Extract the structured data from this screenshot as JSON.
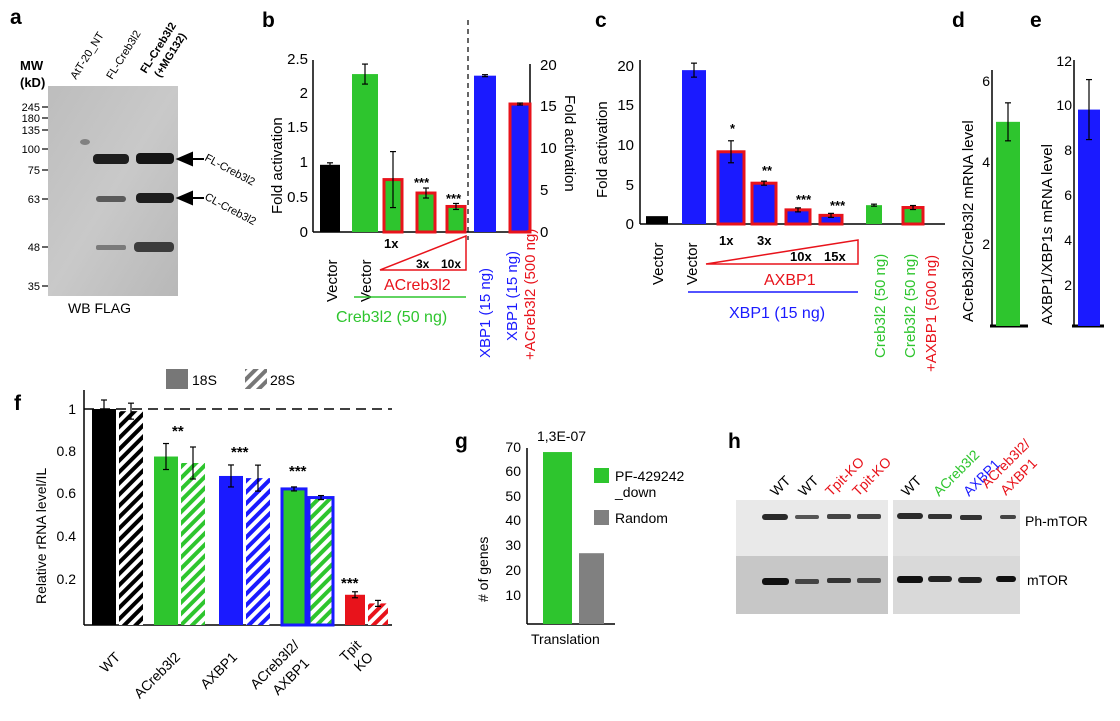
{
  "a": {
    "panel": "a",
    "mw_label": "MW",
    "kd_label": "(kD)",
    "lanes": [
      "AtT-20_NT",
      "FL-Creb3l2"
    ],
    "lane3_line1": "FL-Creb3l2",
    "lane3_line2": "(+MG132)",
    "markers": [
      "245",
      "180",
      "135",
      "100",
      "75",
      "63",
      "48",
      "35"
    ],
    "arrow_labels": [
      "FL-Creb3l2",
      "CL-Creb3l2"
    ],
    "wb_label": "WB FLAG"
  },
  "b": {
    "panel": "b",
    "left_ticks": [
      "0",
      "0.5",
      "1",
      "1.5",
      "2",
      "2.5"
    ],
    "right_ticks": [
      "0",
      "5",
      "10",
      "15",
      "20"
    ],
    "ylabel": "Fold activation",
    "ylabel_right": "Fold activation",
    "x_labels": [
      "Vector",
      "Vector"
    ],
    "doses": [
      "1x",
      "3x",
      "10x"
    ],
    "acreb_label": "ACreb3l2",
    "creb_label": "Creb3l2 (50 ng)",
    "xbp_label": "XBP1 (15 ng)",
    "xbp_label2": "XBP1 (15 ng)",
    "plus_label": "+ACreb3l2 (500 ng)",
    "sig": [
      "***",
      "***"
    ]
  },
  "c": {
    "panel": "c",
    "ticks": [
      "0",
      "5",
      "10",
      "15",
      "20"
    ],
    "ylabel": "Fold activation",
    "x_labels": [
      "Vector",
      "Vector"
    ],
    "doses": [
      "1x",
      "3x",
      "10x",
      "15x"
    ],
    "axbp_label": "AXBP1",
    "xbp_label": "XBP1 (15 ng)",
    "creb_label": "Creb3l2 (50 ng)",
    "creb_label2": "Creb3l2 (50 ng)",
    "plus_label": "+AXBP1 (500 ng)",
    "sig": [
      "*",
      "**",
      "***",
      "***"
    ]
  },
  "d": {
    "panel": "d",
    "ticks": [
      "2",
      "4",
      "6"
    ],
    "ylabel": "ACreb3l2/Creb3l2 mRNA level"
  },
  "e": {
    "panel": "e",
    "ticks": [
      "2",
      "4",
      "6",
      "8",
      "10",
      "12"
    ],
    "ylabel": "AXBP1/XBP1s mRNA level"
  },
  "f": {
    "panel": "f",
    "legend": [
      "18S",
      "28S"
    ],
    "ticks": [
      "0.2",
      "0.4",
      "0.6",
      "0.8",
      "1"
    ],
    "ylabel": "Relative rRNA level/IL",
    "groups": [
      "WT",
      "ACreb3l2",
      "AXBP1"
    ],
    "group4_line1": "ACreb3l2/",
    "group4_line2": "AXBP1",
    "group5_line1": "Tpit",
    "group5_line2": "KO",
    "sig": [
      "**",
      "***",
      "***",
      "***"
    ]
  },
  "g": {
    "panel": "g",
    "ticks": [
      "10",
      "20",
      "30",
      "40",
      "50",
      "60",
      "70"
    ],
    "ylabel": "# of genes",
    "pvalue": "1,3E-07",
    "legend1_line1": "PF-429242",
    "legend1_line2": "_down",
    "legend2": "Random",
    "xlabel": "Translation"
  },
  "h": {
    "panel": "h",
    "lanes_left": [
      "WT",
      "WT",
      "Tpit-KO",
      "Tpit-KO"
    ],
    "lanes_right": [
      "WT",
      "ACreb3l2",
      "AXBP1"
    ],
    "lane_last_line1": "ACreb3l2/",
    "lane_last_line2": "AXBP1",
    "band_labels": [
      "Ph-mTOR",
      "mTOR"
    ]
  },
  "colors": {
    "black": "#000000",
    "green": "#2ec52e",
    "blue": "#1a1aff",
    "red": "#e8131b",
    "gray": "#808080"
  },
  "chart_data": [
    {
      "panel": "b",
      "type": "bar",
      "categories": [
        "Vector",
        "Vector+Creb3l2",
        "1x",
        "3x",
        "10x"
      ],
      "values": [
        1.0,
        2.35,
        0.78,
        0.58,
        0.38
      ],
      "ylim": [
        0,
        2.5
      ]
    },
    {
      "panel": "b-right",
      "type": "bar",
      "categories": [
        "XBP1",
        "XBP1+ACreb3l2"
      ],
      "values": [
        19.3,
        15.8
      ],
      "ylim": [
        0,
        20
      ]
    },
    {
      "panel": "c",
      "type": "bar",
      "categories": [
        "Vector",
        "XBP1",
        "1x",
        "3x",
        "10x",
        "15x",
        "Creb3l2",
        "Creb3l2+AXBP1"
      ],
      "values": [
        1,
        19.6,
        9.2,
        5.2,
        1.8,
        1.1,
        2.4,
        2.1
      ],
      "ylim": [
        0,
        20
      ]
    },
    {
      "panel": "d",
      "type": "bar",
      "categories": [
        ""
      ],
      "values": [
        5.0
      ],
      "ylim": [
        0,
        6.5
      ]
    },
    {
      "panel": "e",
      "type": "bar",
      "categories": [
        ""
      ],
      "values": [
        9.8
      ],
      "ylim": [
        0,
        12
      ]
    },
    {
      "panel": "f",
      "type": "bar",
      "categories": [
        "WT",
        "ACreb3l2",
        "AXBP1",
        "ACreb3l2/AXBP1",
        "Tpit KO"
      ],
      "series": [
        {
          "name": "18S",
          "values": [
            1.0,
            0.78,
            0.69,
            0.63,
            0.14
          ]
        },
        {
          "name": "28S",
          "values": [
            0.99,
            0.75,
            0.68,
            0.59,
            0.1
          ]
        }
      ],
      "ylim": [
        0,
        1.1
      ]
    },
    {
      "panel": "g",
      "type": "bar",
      "categories": [
        "Translation"
      ],
      "series": [
        {
          "name": "PF-429242_down",
          "values": [
            68
          ]
        },
        {
          "name": "Random",
          "values": [
            28
          ]
        }
      ],
      "ylim": [
        0,
        70
      ]
    }
  ]
}
